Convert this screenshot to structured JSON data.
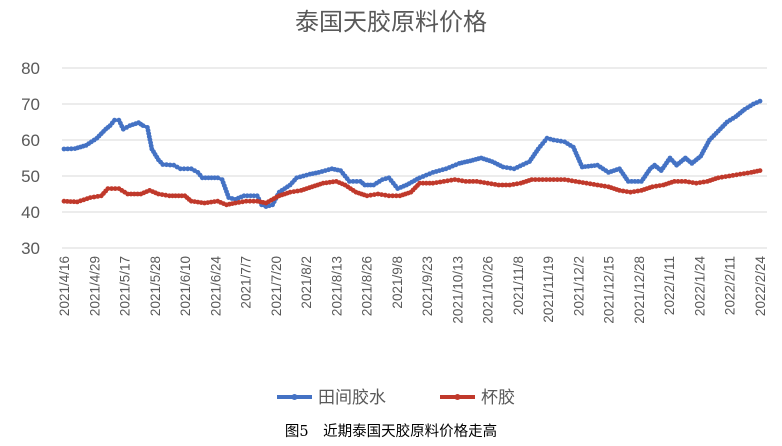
{
  "chart_data": {
    "type": "line",
    "title": "泰国天胶原料价格",
    "caption": "图5　近期泰国天胶原料价格走高",
    "xlabel": "",
    "ylabel": "",
    "ylim": [
      30,
      80
    ],
    "yticks": [
      30,
      40,
      50,
      60,
      70,
      80
    ],
    "grid": true,
    "legend": "bottom",
    "x_tick_labels": [
      "2021/4/16",
      "2021/4/29",
      "2021/5/17",
      "2021/5/28",
      "2021/6/10",
      "2021/6/24",
      "2021/7/7",
      "2021/7/20",
      "2021/8/2",
      "2021/8/13",
      "2021/8/26",
      "2021/9/8",
      "2021/9/23",
      "2021/10/13",
      "2021/10/26",
      "2021/11/8",
      "2021/11/19",
      "2021/12/2",
      "2021/12/15",
      "2021/12/28",
      "2022/1/11",
      "2022/1/24",
      "2022/2/11",
      "2022/2/24"
    ],
    "series": [
      {
        "name": "田间胶水",
        "color": "#4472c4",
        "points": [
          [
            0,
            57.5
          ],
          [
            0.5,
            57.6
          ],
          [
            1,
            58.5
          ],
          [
            1.5,
            60.5
          ],
          [
            1.9,
            63.0
          ],
          [
            2.1,
            64.0
          ],
          [
            2.3,
            65.5
          ],
          [
            2.5,
            65.5
          ],
          [
            2.7,
            63.0
          ],
          [
            3.0,
            64.0
          ],
          [
            3.4,
            64.8
          ],
          [
            3.6,
            64.0
          ],
          [
            3.8,
            63.5
          ],
          [
            4.0,
            57.5
          ],
          [
            4.3,
            54.5
          ],
          [
            4.5,
            53.2
          ],
          [
            5.0,
            53.0
          ],
          [
            5.3,
            52.0
          ],
          [
            5.8,
            52.0
          ],
          [
            6.1,
            51.0
          ],
          [
            6.3,
            49.5
          ],
          [
            7.0,
            49.5
          ],
          [
            7.2,
            49.0
          ],
          [
            7.5,
            44.0
          ],
          [
            7.8,
            43.5
          ],
          [
            8.2,
            44.5
          ],
          [
            8.8,
            44.5
          ],
          [
            9.0,
            42.0
          ],
          [
            9.2,
            41.5
          ],
          [
            9.5,
            42.0
          ],
          [
            9.8,
            45.5
          ],
          [
            10.3,
            47.5
          ],
          [
            10.6,
            49.5
          ],
          [
            11.2,
            50.5
          ],
          [
            11.6,
            51.0
          ],
          [
            12.2,
            52.0
          ],
          [
            12.6,
            51.5
          ],
          [
            13.0,
            48.5
          ],
          [
            13.5,
            48.5
          ],
          [
            13.7,
            47.5
          ],
          [
            14.1,
            47.5
          ],
          [
            14.5,
            49.0
          ],
          [
            14.8,
            49.5
          ],
          [
            15.2,
            46.5
          ],
          [
            15.6,
            47.5
          ],
          [
            16.2,
            49.5
          ],
          [
            16.8,
            51.0
          ],
          [
            17.4,
            52.0
          ],
          [
            18.0,
            53.5
          ],
          [
            18.5,
            54.2
          ],
          [
            19.0,
            55.0
          ],
          [
            19.5,
            54.0
          ],
          [
            20.0,
            52.5
          ],
          [
            20.5,
            52.0
          ],
          [
            21.2,
            54.0
          ],
          [
            21.6,
            57.5
          ],
          [
            22.0,
            60.5
          ],
          [
            22.3,
            60.0
          ],
          [
            22.8,
            59.5
          ],
          [
            23.2,
            58.0
          ],
          [
            23.6,
            52.5
          ],
          [
            24.3,
            53.0
          ],
          [
            24.8,
            51.0
          ],
          [
            25.3,
            52.0
          ],
          [
            25.7,
            48.5
          ],
          [
            26.3,
            48.5
          ],
          [
            26.7,
            52.0
          ],
          [
            26.9,
            53.0
          ],
          [
            27.2,
            51.5
          ],
          [
            27.6,
            55.0
          ],
          [
            27.9,
            53.0
          ],
          [
            28.3,
            55.0
          ],
          [
            28.6,
            53.5
          ],
          [
            29.0,
            55.5
          ],
          [
            29.4,
            60.0
          ],
          [
            29.8,
            62.5
          ],
          [
            30.2,
            65.0
          ],
          [
            30.6,
            66.5
          ],
          [
            31.0,
            68.5
          ],
          [
            31.4,
            70.0
          ],
          [
            31.7,
            70.8
          ]
        ]
      },
      {
        "name": "杯胶",
        "color": "#c0392b",
        "points": [
          [
            0,
            43.0
          ],
          [
            0.6,
            42.8
          ],
          [
            1.2,
            44.0
          ],
          [
            1.7,
            44.5
          ],
          [
            2.0,
            46.5
          ],
          [
            2.5,
            46.5
          ],
          [
            2.9,
            45.0
          ],
          [
            3.5,
            45.0
          ],
          [
            3.9,
            46.0
          ],
          [
            4.3,
            45.0
          ],
          [
            4.8,
            44.5
          ],
          [
            5.5,
            44.5
          ],
          [
            5.8,
            43.0
          ],
          [
            6.4,
            42.5
          ],
          [
            7.0,
            43.0
          ],
          [
            7.4,
            42.0
          ],
          [
            7.8,
            42.5
          ],
          [
            8.3,
            43.0
          ],
          [
            8.8,
            43.0
          ],
          [
            9.2,
            42.5
          ],
          [
            9.8,
            44.5
          ],
          [
            10.3,
            45.5
          ],
          [
            10.8,
            46.0
          ],
          [
            11.3,
            47.0
          ],
          [
            11.8,
            48.0
          ],
          [
            12.4,
            48.5
          ],
          [
            12.8,
            47.5
          ],
          [
            13.3,
            45.5
          ],
          [
            13.8,
            44.5
          ],
          [
            14.3,
            45.0
          ],
          [
            14.8,
            44.5
          ],
          [
            15.3,
            44.5
          ],
          [
            15.8,
            45.5
          ],
          [
            16.2,
            48.0
          ],
          [
            16.8,
            48.0
          ],
          [
            17.3,
            48.5
          ],
          [
            17.8,
            49.0
          ],
          [
            18.3,
            48.5
          ],
          [
            18.8,
            48.5
          ],
          [
            19.3,
            48.0
          ],
          [
            19.8,
            47.5
          ],
          [
            20.3,
            47.5
          ],
          [
            20.8,
            48.0
          ],
          [
            21.3,
            49.0
          ],
          [
            21.8,
            49.0
          ],
          [
            22.3,
            49.0
          ],
          [
            22.8,
            49.0
          ],
          [
            23.3,
            48.5
          ],
          [
            23.8,
            48.0
          ],
          [
            24.3,
            47.5
          ],
          [
            24.8,
            47.0
          ],
          [
            25.3,
            46.0
          ],
          [
            25.8,
            45.5
          ],
          [
            26.3,
            46.0
          ],
          [
            26.8,
            47.0
          ],
          [
            27.3,
            47.5
          ],
          [
            27.8,
            48.5
          ],
          [
            28.3,
            48.5
          ],
          [
            28.8,
            48.0
          ],
          [
            29.3,
            48.5
          ],
          [
            29.8,
            49.5
          ],
          [
            30.3,
            50.0
          ],
          [
            30.8,
            50.5
          ],
          [
            31.3,
            51.0
          ],
          [
            31.7,
            51.5
          ]
        ]
      }
    ]
  }
}
